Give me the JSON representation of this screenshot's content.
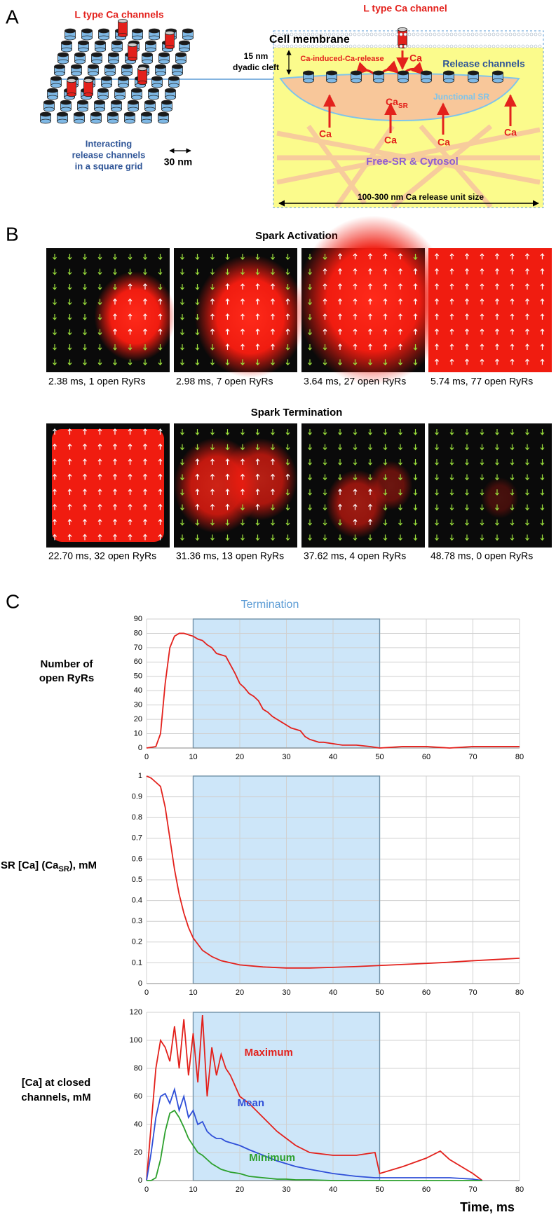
{
  "panel_labels": [
    "A",
    "B",
    "C"
  ],
  "diagram": {
    "l_type_channels": "L type Ca channels",
    "grid_caption": [
      "Interacting",
      "release channels",
      "in a square grid"
    ],
    "spacing": "30 nm",
    "l_type_channel": "L type Ca channel",
    "membrane": "Cell membrane",
    "cleft": [
      "15 nm",
      "dyadic cleft"
    ],
    "cicr": "Ca-induced-Ca-release",
    "ca_top": "Ca",
    "release_channels": "Release channels",
    "ca_sr": {
      "main": "Ca",
      "sub": "SR"
    },
    "junctional_sr": "Junctional SR",
    "ca_arrows": [
      "Ca",
      "Ca",
      "Ca",
      "Ca"
    ],
    "cytosol": "Free-SR & Cytosol",
    "size": "100-300 nm Ca release unit size"
  },
  "sparks": {
    "activation": {
      "title": "Spark Activation",
      "frames": [
        "2.38 ms, 1 open RyRs",
        "2.98 ms, 7 open RyRs",
        "3.64 ms, 27 open RyRs",
        "5.74 ms, 77 open RyRs"
      ]
    },
    "termination": {
      "title": "Spark  Termination",
      "frames": [
        "22.70 ms, 32 open RyRs",
        "31.36 ms, 13 open RyRs",
        "37.62 ms, 4 open RyRs",
        "48.78 ms, 0 open RyRs"
      ]
    }
  },
  "chart_data": [
    {
      "type": "line",
      "annotation": "Termination",
      "highlight": [
        10,
        50
      ],
      "y_label": [
        "Number of",
        "open RyRs"
      ],
      "x": [
        0,
        2,
        3,
        4,
        5,
        6,
        7,
        8,
        9,
        10,
        11,
        12,
        13,
        14,
        15,
        16,
        17,
        18,
        19,
        20,
        21,
        22,
        23,
        24,
        25,
        26,
        27,
        28,
        29,
        30,
        31,
        32,
        33,
        34,
        35,
        36,
        37,
        38,
        40,
        42,
        45,
        48,
        50,
        55,
        60,
        65,
        70,
        75,
        80
      ],
      "series": [
        {
          "name": null,
          "color": "#e3211c",
          "values": [
            0,
            1,
            10,
            45,
            70,
            78,
            80,
            80,
            79,
            78,
            76,
            75,
            72,
            70,
            66,
            65,
            64,
            58,
            52,
            45,
            42,
            38,
            36,
            33,
            27,
            25,
            22,
            20,
            18,
            16,
            14,
            13,
            12,
            8,
            6,
            5,
            4,
            4,
            3,
            2,
            2,
            1,
            0,
            1,
            1,
            0,
            1,
            1,
            1
          ]
        }
      ],
      "xlim": [
        0,
        80
      ],
      "xticks": [
        0,
        10,
        20,
        30,
        40,
        50,
        60,
        70,
        80
      ],
      "ylim": [
        0,
        90
      ],
      "yticks": [
        0,
        10,
        20,
        30,
        40,
        50,
        60,
        70,
        80,
        90
      ],
      "grid": true
    },
    {
      "type": "line",
      "highlight": [
        10,
        50
      ],
      "y_label": {
        "main": "SR [Ca] (Ca",
        "sub": "SR",
        "tail": "),  mM"
      },
      "x": [
        0,
        1,
        2,
        3,
        4,
        5,
        6,
        7,
        8,
        9,
        10,
        12,
        14,
        16,
        18,
        20,
        25,
        30,
        35,
        40,
        45,
        50,
        55,
        60,
        65,
        70,
        75,
        80
      ],
      "series": [
        {
          "name": null,
          "color": "#e3211c",
          "values": [
            1,
            0.99,
            0.97,
            0.95,
            0.85,
            0.7,
            0.55,
            0.43,
            0.34,
            0.27,
            0.22,
            0.16,
            0.13,
            0.11,
            0.1,
            0.09,
            0.08,
            0.075,
            0.075,
            0.078,
            0.082,
            0.087,
            0.092,
            0.097,
            0.103,
            0.11,
            0.116,
            0.122
          ]
        }
      ],
      "xlim": [
        0,
        80
      ],
      "xticks": [
        0,
        10,
        20,
        30,
        40,
        50,
        60,
        70,
        80
      ],
      "ylim": [
        0,
        1
      ],
      "yticks": [
        0,
        0.1,
        0.2,
        0.3,
        0.4,
        0.5,
        0.6,
        0.7,
        0.8,
        0.9,
        1
      ],
      "grid": true
    },
    {
      "type": "line",
      "highlight": [
        10,
        50
      ],
      "y_label": [
        "[Ca] at closed",
        "channels, mM"
      ],
      "x_label": "Time, ms",
      "x": [
        0,
        1,
        2,
        3,
        4,
        5,
        6,
        7,
        8,
        9,
        10,
        11,
        12,
        13,
        14,
        15,
        16,
        17,
        18,
        20,
        22,
        25,
        28,
        30,
        32,
        35,
        40,
        45,
        49,
        50,
        55,
        60,
        63,
        65,
        70,
        72,
        80
      ],
      "series": [
        {
          "name": "Maximum",
          "color": "#e3211c",
          "values": [
            0,
            40,
            80,
            100,
            95,
            85,
            110,
            80,
            115,
            75,
            105,
            70,
            118,
            60,
            95,
            75,
            90,
            80,
            75,
            60,
            55,
            45,
            35,
            30,
            25,
            20,
            18,
            18,
            20,
            5,
            10,
            16,
            21,
            15,
            5,
            0,
            null
          ]
        },
        {
          "name": "Mean",
          "color": "#2f4fd8",
          "values": [
            0,
            20,
            45,
            60,
            62,
            55,
            65,
            50,
            60,
            45,
            50,
            40,
            42,
            35,
            32,
            30,
            30,
            28,
            27,
            25,
            22,
            18,
            14,
            12,
            10,
            8,
            5,
            3,
            2,
            2,
            2,
            2,
            2,
            2,
            1,
            0,
            null
          ]
        },
        {
          "name": "Minimum",
          "color": "#2ca02c",
          "values": [
            0,
            0,
            2,
            15,
            35,
            48,
            50,
            45,
            38,
            30,
            25,
            20,
            18,
            15,
            12,
            10,
            8,
            7,
            6,
            5,
            3,
            2,
            1,
            1,
            0.5,
            0.5,
            0,
            0,
            0,
            0,
            0,
            0,
            0,
            0,
            0,
            0,
            null
          ]
        }
      ],
      "xlim": [
        0,
        80
      ],
      "xticks": [
        0,
        10,
        20,
        30,
        40,
        50,
        60,
        70,
        80
      ],
      "ylim": [
        0,
        120
      ],
      "yticks": [
        0,
        20,
        40,
        60,
        80,
        100,
        120
      ],
      "grid": true
    }
  ]
}
